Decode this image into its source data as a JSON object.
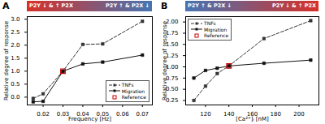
{
  "chart_data": [
    {
      "type": "line",
      "title": "A",
      "xlabel": "Frequency [Hz]",
      "ylabel": "Relative degree of response",
      "xlim": [
        0.012,
        0.075
      ],
      "ylim": [
        -0.3,
        3.1
      ],
      "xticks": [
        0.02,
        0.03,
        0.04,
        0.05,
        0.06,
        0.07
      ],
      "yticks": [
        {
          "value": 0.0,
          "label": "0.0"
        },
        0.5,
        {
          "value": 1.0,
          "label": "1.0"
        },
        1.5,
        {
          "value": 2.0,
          "label": "2.0"
        },
        2.5,
        {
          "value": 3.0,
          "label": "3.0"
        }
      ],
      "series": [
        {
          "name": "TNFs",
          "color": "#333333",
          "line_style": "dashed",
          "marker": "square",
          "x": [
            0.015,
            0.02,
            0.03,
            0.04,
            0.05,
            0.07
          ],
          "values": [
            -0.05,
            0.13,
            1.0,
            2.03,
            2.05,
            2.92
          ]
        },
        {
          "name": "Migration",
          "color": "#111111",
          "line_style": "solid",
          "marker": "square",
          "x": [
            0.015,
            0.02,
            0.03,
            0.04,
            0.05,
            0.07
          ],
          "values": [
            -0.18,
            -0.16,
            1.0,
            1.28,
            1.35,
            1.62
          ]
        },
        {
          "name": "Reference",
          "type": "scatter",
          "color": "#cc0000",
          "line_style": "none",
          "marker": "open_square",
          "x": [
            0.03
          ],
          "values": [
            1.0
          ]
        }
      ],
      "legend": "lower right",
      "annotations": [
        {
          "text": "P2Y ↓ & ↑ P2X",
          "color": "#d73027"
        },
        {
          "text": "P2Y ↑ & P2X ↓",
          "color": "#4575b4"
        }
      ]
    },
    {
      "type": "line",
      "title": "B",
      "xlabel": "[Ca²⁺]ᵢ [nM]",
      "ylabel": "Relative degree of response",
      "xlim": [
        103,
        217
      ],
      "ylim": [
        0.15,
        2.12
      ],
      "xticks": [
        120,
        140,
        160,
        180,
        200
      ],
      "yticks": [
        0.25,
        {
          "value": 0.5,
          "label": "0.50"
        },
        0.75,
        {
          "value": 1.0,
          "label": "1.00"
        },
        1.25,
        {
          "value": 1.5,
          "label": "1.50"
        },
        1.75,
        {
          "value": 2.0,
          "label": "2.00"
        }
      ],
      "series": [
        {
          "name": "TNFs",
          "color": "#333333",
          "line_style": "dashed",
          "marker": "square",
          "x": [
            110,
            120,
            130,
            140,
            170,
            210
          ],
          "values": [
            0.25,
            0.57,
            0.85,
            1.02,
            1.63,
            2.03
          ]
        },
        {
          "name": "Migration",
          "color": "#111111",
          "line_style": "solid",
          "marker": "square",
          "x": [
            110,
            120,
            130,
            140,
            170,
            210
          ],
          "values": [
            0.75,
            0.92,
            0.97,
            1.02,
            1.08,
            1.15
          ]
        },
        {
          "name": "Reference",
          "type": "scatter",
          "color": "#cc0000",
          "line_style": "none",
          "marker": "open_square",
          "x": [
            140
          ],
          "values": [
            1.02
          ]
        }
      ],
      "legend": "upper left",
      "annotations": [
        {
          "text": "P2Y ↑ & P2X ↓",
          "color": "#4575b4"
        },
        {
          "text": "P2Y ↓ & ↑ P2X",
          "color": "#d73027"
        }
      ]
    }
  ]
}
